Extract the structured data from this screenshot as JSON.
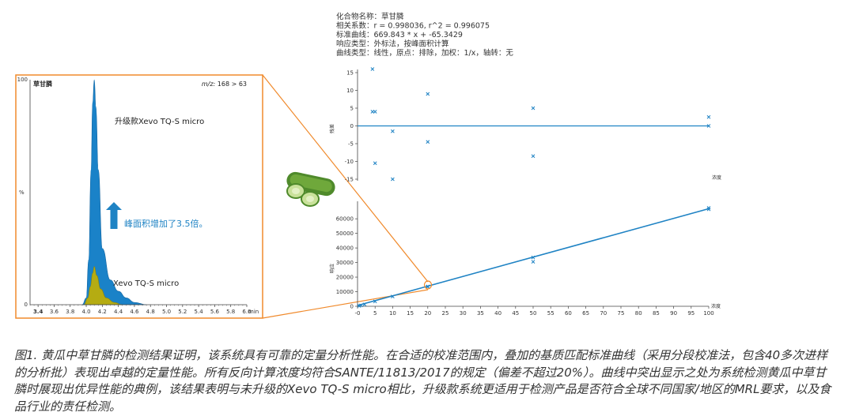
{
  "colors": {
    "accent": "#1f83c4",
    "highlight": "#f08a2c",
    "upgraded_fill": "#1a82c8",
    "standard_fill": "#b5ac12",
    "axis": "#444444",
    "frame": "#f08a2c"
  },
  "icons": {
    "arrow": "up-arrow-icon",
    "cucumber": "cucumber-image"
  },
  "info": {
    "lines": [
      "化合物名称：草甘膦",
      "相关系数：r = 0.998036, r^2 = 0.996075",
      "标准曲线：669.843 * x + -65.3429",
      "响应类型：外标法，按峰面积计算",
      "曲线类型：线性，原点：排除，加权：1/x，轴转：无"
    ]
  },
  "chart_data": [
    {
      "type": "area",
      "title": "草甘膦",
      "subtitle": "m/z: 168 > 63",
      "ylabel": "%",
      "xlabel": "min",
      "xlim": [
        3.3,
        6.0
      ],
      "ylim": [
        0,
        100
      ],
      "x_ticks": [
        "3.4",
        "3.6",
        "3.8",
        "4.0",
        "4.2",
        "4.4",
        "4.6",
        "4.8",
        "5.0",
        "5.2",
        "5.4",
        "5.6",
        "5.8",
        "6.0"
      ],
      "y_ticks": [
        "0",
        "100"
      ],
      "series": [
        {
          "name": "升级款Xevo TQ-S micro",
          "x": [
            3.95,
            4.0,
            4.03,
            4.06,
            4.08,
            4.1,
            4.12,
            4.15,
            4.2,
            4.3,
            4.4,
            4.5,
            4.6,
            4.75
          ],
          "values": [
            0,
            3,
            20,
            60,
            90,
            100,
            88,
            60,
            25,
            11,
            6,
            3,
            1,
            0
          ]
        },
        {
          "name": "Xevo TQ-S micro",
          "x": [
            3.97,
            4.02,
            4.05,
            4.08,
            4.1,
            4.13,
            4.18,
            4.25,
            4.35,
            4.45
          ],
          "values": [
            0,
            3,
            8,
            14,
            17,
            13,
            7,
            3,
            1,
            0
          ]
        }
      ],
      "annotations": [
        "升级款Xevo TQ-S micro",
        "峰面积增加了3.5倍。",
        "Xevo TQ-S micro"
      ]
    },
    {
      "type": "scatter",
      "ylabel": "残差",
      "xlabel": "浓度",
      "xlim": [
        0,
        100
      ],
      "ylim": [
        -15,
        15
      ],
      "y_ticks": [
        "15",
        "10",
        "5",
        "0",
        "-5",
        "-10",
        "-15"
      ],
      "series": [
        {
          "name": "",
          "x": [
            2,
            2,
            5,
            5,
            10,
            10,
            20,
            20,
            50,
            50,
            100,
            100
          ],
          "values": [
            16,
            4,
            4,
            -10.5,
            -1.5,
            -15,
            9,
            -4.5,
            5,
            -8.5,
            2.5,
            0
          ]
        }
      ],
      "reference_line": 0
    },
    {
      "type": "scatter",
      "ylabel": "响应",
      "xlabel": "浓度",
      "xlim": [
        0,
        100
      ],
      "ylim": [
        0,
        70000
      ],
      "x_ticks": [
        "-0",
        "5",
        "10",
        "15",
        "20",
        "25",
        "30",
        "35",
        "40",
        "45",
        "50",
        "55",
        "60",
        "65",
        "70",
        "75",
        "80",
        "85",
        "90",
        "95",
        "100"
      ],
      "y_ticks": [
        "60000",
        "50000",
        "40000",
        "30000",
        "20000",
        "10000",
        "0"
      ],
      "series": [
        {
          "name": "",
          "x": [
            0.5,
            1,
            2,
            5,
            10,
            20,
            20,
            50,
            50,
            100,
            100
          ],
          "values": [
            280,
            600,
            1300,
            3300,
            6700,
            13300,
            13600,
            33500,
            30500,
            67500,
            66500
          ]
        }
      ],
      "fit": {
        "slope": 669.843,
        "intercept": -65.3429
      }
    }
  ],
  "caption": "图1. 黄瓜中草甘膦的检测结果证明，该系统具有可靠的定量分析性能。在合适的校准范围内，叠加的基质匹配标准曲线（采用分段校准法，包含40多次进样的分析批）表现出卓越的定量性能。所有反向计算浓度均符合SANTE/11813/2017的规定（偏差不超过20%）。曲线中突出显示之处为系统检测黄瓜中草甘膦时展现出优异性能的典例，该结果表明与未升级的Xevo TQ-S micro相比，升级款系统更适用于检测产品是否符合全球不同国家/地区的MRL要求，以及食品行业的责任检测。"
}
